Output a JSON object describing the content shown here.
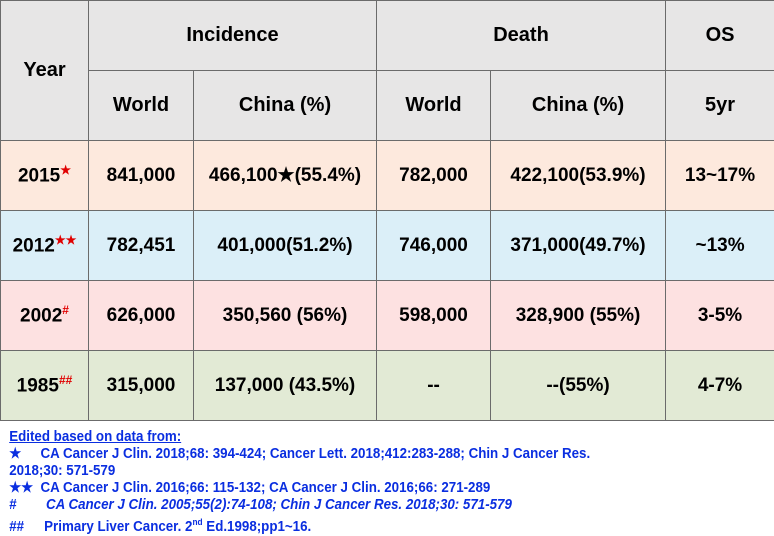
{
  "headers": {
    "year": "Year",
    "incidence": "Incidence",
    "death": "Death",
    "os": "OS",
    "world": "World",
    "china_pct": "China  (%)",
    "five_yr": "5yr"
  },
  "rows": [
    {
      "year": "2015",
      "mark": "★",
      "inc_world": "841,000",
      "inc_china": "466,100★(55.4%)",
      "death_world": "782,000",
      "death_china": "422,100(53.9%)",
      "os": "13~17%"
    },
    {
      "year": "2012",
      "mark": "★★",
      "inc_world": "782,451",
      "inc_china": "401,000(51.2%)",
      "death_world": "746,000",
      "death_china": "371,000(49.7%)",
      "os": "~13%"
    },
    {
      "year": "2002",
      "mark": "#",
      "inc_world": "626,000",
      "inc_china": "350,560 (56%)",
      "death_world": "598,000",
      "death_china": "328,900 (55%)",
      "os": "3-5%"
    },
    {
      "year": "1985",
      "mark": "##",
      "inc_world": "315,000",
      "inc_china": "137,000 (43.5%)",
      "death_world": "--",
      "death_china": "--(55%)",
      "os": "4-7%"
    }
  ],
  "footnotes": {
    "title": "Edited based on data from:",
    "items": [
      {
        "symbol": "★",
        "text": "CA Cancer J Clin. 2018;68: 394-424; Cancer Lett. 2018;412:283-288; Chin J Cancer Res.",
        "text2": "2018;30: 571-579"
      },
      {
        "symbol": "★★",
        "text": "CA Cancer J Clin. 2016;66: 115-132; CA Cancer J Clin. 2016;66: 271-289"
      },
      {
        "symbol": "#",
        "text": "CA Cancer J Clin. 2005;55(2):74-108; Chin J Cancer Res. 2018;30: 571-579"
      },
      {
        "symbol": "##",
        "text_pre": "Primary Liver Cancer. 2",
        "sup": "nd",
        "text_post": " Ed.1998;pp1~16."
      }
    ]
  }
}
